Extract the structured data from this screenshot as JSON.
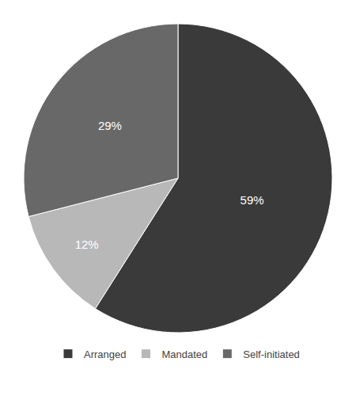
{
  "chart_data": {
    "type": "pie",
    "categories": [
      "Arranged",
      "Mandated",
      "Self-initiated"
    ],
    "values": [
      59,
      12,
      29
    ],
    "value_labels": [
      "59%",
      "12%",
      "29%"
    ],
    "colors": [
      "#3a3a3a",
      "#b8b8b8",
      "#686868"
    ],
    "data_labels": true,
    "legend": "bottom"
  }
}
